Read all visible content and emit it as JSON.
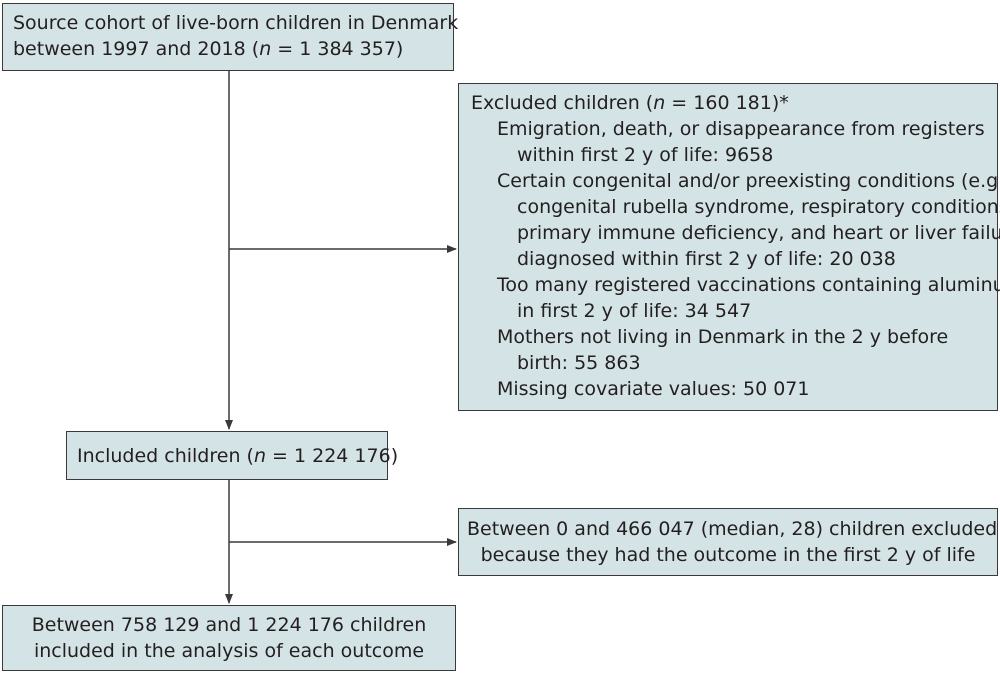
{
  "flowchart": {
    "source": {
      "line1": "Source cohort of live-born children in Denmark",
      "line2_pre": "between 1997 and 2018 (",
      "n_symbol": "n",
      "line2_post": " = 1 384 357)"
    },
    "excluded": {
      "title_pre": "Excluded children (",
      "n_symbol": "n",
      "title_post": " = 160 181)*",
      "reasons": [
        {
          "lines": [
            "Emigration, death, or disappearance from registers",
            "within first 2 y of life: 9658"
          ]
        },
        {
          "lines": [
            "Certain congenital and/or preexisting conditions (e.g.,",
            "congenital rubella syndrome, respiratory conditions,",
            "primary immune deficiency, and heart or liver failure)",
            "diagnosed within first 2 y of life: 20 038"
          ]
        },
        {
          "lines": [
            "Too many registered vaccinations containing aluminum",
            "in first 2 y of life: 34 547"
          ]
        },
        {
          "lines": [
            "Mothers not living in Denmark in the 2 y before",
            "birth: 55 863"
          ]
        },
        {
          "lines": [
            "Missing covariate values: 50 071"
          ]
        }
      ]
    },
    "included": {
      "label_pre": "Included children (",
      "n_symbol": "n",
      "label_post": " = 1 224 176)"
    },
    "outcome_exclusion": {
      "line1": "Between 0 and 466 047 (median, 28) children excluded",
      "line2": "because they had the outcome in the first 2 y of life"
    },
    "analysis": {
      "line1": "Between 758 129 and 1 224 176 children",
      "line2": "included in the analysis of each outcome"
    }
  },
  "colors": {
    "box_fill": "#d3e3e6",
    "box_border": "#3a3a3a",
    "connector": "#3a3a3a",
    "text": "#231f20"
  }
}
